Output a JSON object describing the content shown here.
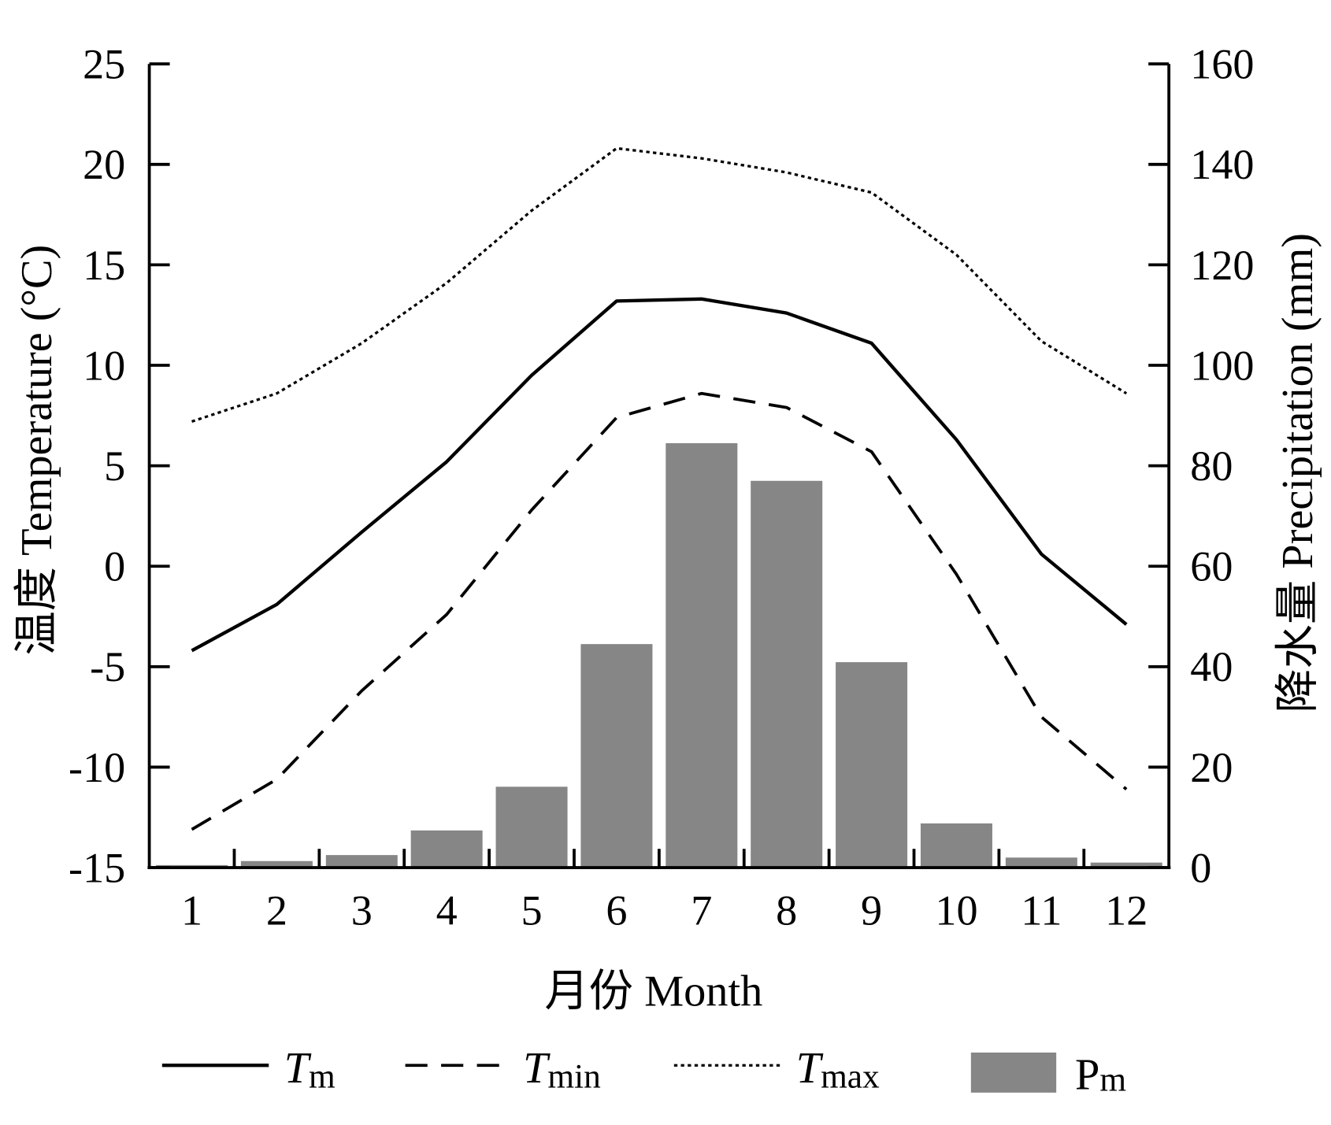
{
  "chart_data": {
    "type": "bar",
    "categories": [
      "1",
      "2",
      "3",
      "4",
      "5",
      "6",
      "7",
      "8",
      "9",
      "10",
      "11",
      "12"
    ],
    "xlabel": "月份 Month",
    "ylabel": "温度 Temperature (°C)",
    "y2label": "降水量 Precipitation (mm)",
    "ylim": [
      -15,
      25
    ],
    "y2lim": [
      0,
      160
    ],
    "yticks": [
      25,
      20,
      15,
      10,
      5,
      0,
      -5,
      -10,
      -15
    ],
    "y2ticks": [
      160,
      140,
      120,
      100,
      80,
      60,
      40,
      20,
      0
    ],
    "grid": false,
    "legend": "bottom",
    "series": [
      {
        "label_main": "T",
        "label_sub": "m",
        "type": "line",
        "line_style": "solid",
        "axis": "left",
        "color": "#000000",
        "values": [
          -4.2,
          -1.9,
          1.7,
          5.2,
          9.5,
          13.2,
          13.3,
          12.6,
          11.1,
          6.3,
          0.6,
          -2.9
        ]
      },
      {
        "label_main": "T",
        "label_sub": "min",
        "type": "line",
        "line_style": "dashed",
        "axis": "left",
        "color": "#000000",
        "values": [
          -13.1,
          -10.6,
          -6.2,
          -2.4,
          2.8,
          7.4,
          8.6,
          7.9,
          5.7,
          -0.4,
          -7.5,
          -11.1
        ]
      },
      {
        "label_main": "T",
        "label_sub": "max",
        "type": "line",
        "line_style": "dotted",
        "axis": "left",
        "color": "#000000",
        "values": [
          7.2,
          8.6,
          11.1,
          14.1,
          17.7,
          20.8,
          20.3,
          19.6,
          18.6,
          15.5,
          11.2,
          8.6
        ]
      },
      {
        "label_main": "P",
        "label_sub": "m",
        "type": "bar",
        "axis": "right",
        "color": "#868686",
        "values": [
          0.5,
          1.3,
          2.5,
          7.4,
          16.1,
          44.5,
          84.5,
          77.0,
          40.9,
          8.8,
          2.0,
          1.0
        ]
      }
    ]
  }
}
